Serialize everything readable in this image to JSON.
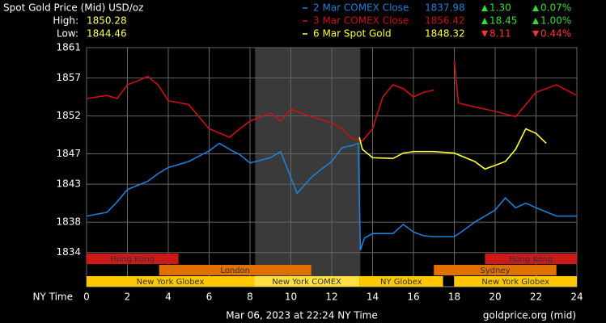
{
  "chart_data": {
    "type": "line",
    "title": "Spot Gold Price (Mid) USD/oz",
    "high_label": "High:",
    "high": "1850.28",
    "low_label": "Low:",
    "low": "1844.46",
    "xlabel": "NY Time",
    "footer": "Mar 06, 2023 at 22:24 NY Time",
    "source": "goldprice.org (mid)",
    "xlim": [
      0,
      24
    ],
    "xticks": [
      0,
      2,
      4,
      6,
      8,
      10,
      12,
      14,
      16,
      18,
      20,
      22,
      24
    ],
    "ylim": [
      1829.5,
      1861
    ],
    "yticks": [
      1834,
      1838,
      1843,
      1847,
      1852,
      1857,
      1861
    ],
    "grid": true,
    "highlight": [
      8.25,
      13.4
    ],
    "series": [
      {
        "name": "2 Mar COMEX Close",
        "color": "#1e7fd8",
        "price": "1837.98",
        "change": "1.30",
        "change_pct": "0.07%",
        "direction": "up",
        "x": [
          0,
          1,
          1.5,
          2,
          3,
          3.5,
          4,
          5,
          6,
          6.5,
          7,
          7.5,
          8,
          9,
          9.5,
          10,
          10.3,
          11,
          11.5,
          12,
          12.5,
          13,
          13.3,
          13.4,
          13.6,
          14,
          15,
          15.5,
          16,
          16.5,
          17,
          18,
          18.5,
          19,
          20,
          20.5,
          21,
          21.5,
          22,
          23,
          24
        ],
        "values": [
          1838.8,
          1839.3,
          1840.7,
          1842.3,
          1843.4,
          1844.4,
          1845.2,
          1846,
          1847.4,
          1848.4,
          1847.6,
          1846.9,
          1845.8,
          1846.5,
          1847.3,
          1843.9,
          1841.8,
          1843.9,
          1845,
          1846,
          1847.8,
          1848.1,
          1848.4,
          1834.3,
          1835.9,
          1836.5,
          1836.5,
          1837.7,
          1836.7,
          1836.2,
          1836.1,
          1836.1,
          1837,
          1838,
          1839.6,
          1841.2,
          1839.9,
          1840.5,
          1839.9,
          1838.8,
          1838.8
        ]
      },
      {
        "name": "3 Mar COMEX Close",
        "color": "#cc1111",
        "price": "1856.42",
        "change": "18.45",
        "change_pct": "1.00%",
        "direction": "up",
        "x": [
          0,
          1,
          1.5,
          2,
          2.5,
          3,
          3.5,
          4,
          5,
          5.5,
          6,
          7,
          7.5,
          8,
          9,
          9.5,
          10,
          11,
          12,
          12.5,
          13,
          13.5,
          14,
          14.5,
          15,
          15.5,
          16,
          16.5,
          17,
          17.5,
          18,
          18.2,
          19,
          20,
          21,
          21.5,
          22,
          23,
          23.5,
          24
        ],
        "values": [
          1854.3,
          1854.7,
          1854.3,
          1856.1,
          1856.6,
          1857.2,
          1856.1,
          1854,
          1853.5,
          1851.9,
          1850.3,
          1849.2,
          1850.3,
          1851.3,
          1852.4,
          1851.3,
          1852.9,
          1851.9,
          1851.1,
          1850.3,
          1849,
          1848.7,
          1850.3,
          1854.5,
          1856.1,
          1855.6,
          1854.5,
          1855.1,
          1855.4,
          null,
          1859.3,
          1853.7,
          1853.2,
          1852.6,
          1851.9,
          1853.5,
          1855.1,
          1856.1,
          1855.4,
          1854.7
        ]
      },
      {
        "name": "6 Mar Spot Gold",
        "color": "#ffff33",
        "price": "1848.32",
        "change": "8.11",
        "change_pct": "0.44%",
        "direction": "down",
        "x": [
          13.35,
          13.5,
          14,
          15,
          15.5,
          16,
          17,
          18,
          19,
          19.5,
          20,
          20.5,
          21,
          21.5,
          22,
          22.5
        ],
        "values": [
          1849.2,
          1847.6,
          1846.5,
          1846.4,
          1847.1,
          1847.3,
          1847.3,
          1847.1,
          1846,
          1845,
          1845.5,
          1846,
          1847.6,
          1850.3,
          1849.7,
          1848.4
        ]
      }
    ],
    "sessions": [
      {
        "name": "Hong Kong",
        "start": 0,
        "end": 4.5,
        "row": 0,
        "color": "#cc1a1a"
      },
      {
        "name": "Hong Kong",
        "start": 19.5,
        "end": 24,
        "row": 0,
        "color": "#cc1a1a"
      },
      {
        "name": "London",
        "start": 3.55,
        "end": 11,
        "row": 1,
        "color": "#e07000"
      },
      {
        "name": "Sydney",
        "start": 17,
        "end": 23,
        "row": 1,
        "color": "#e07000"
      },
      {
        "name": "New York Globex",
        "start": 0,
        "end": 8.2,
        "row": 2,
        "color": "#ffc800"
      },
      {
        "name": "New York COMEX",
        "start": 8.2,
        "end": 13.35,
        "row": 2,
        "color": "#ffe040"
      },
      {
        "name": "NY Globex",
        "start": 13.35,
        "end": 17.45,
        "row": 2,
        "color": "#ffc800"
      },
      {
        "name": "New York Globex",
        "start": 18,
        "end": 24,
        "row": 2,
        "color": "#ffc800"
      }
    ]
  }
}
